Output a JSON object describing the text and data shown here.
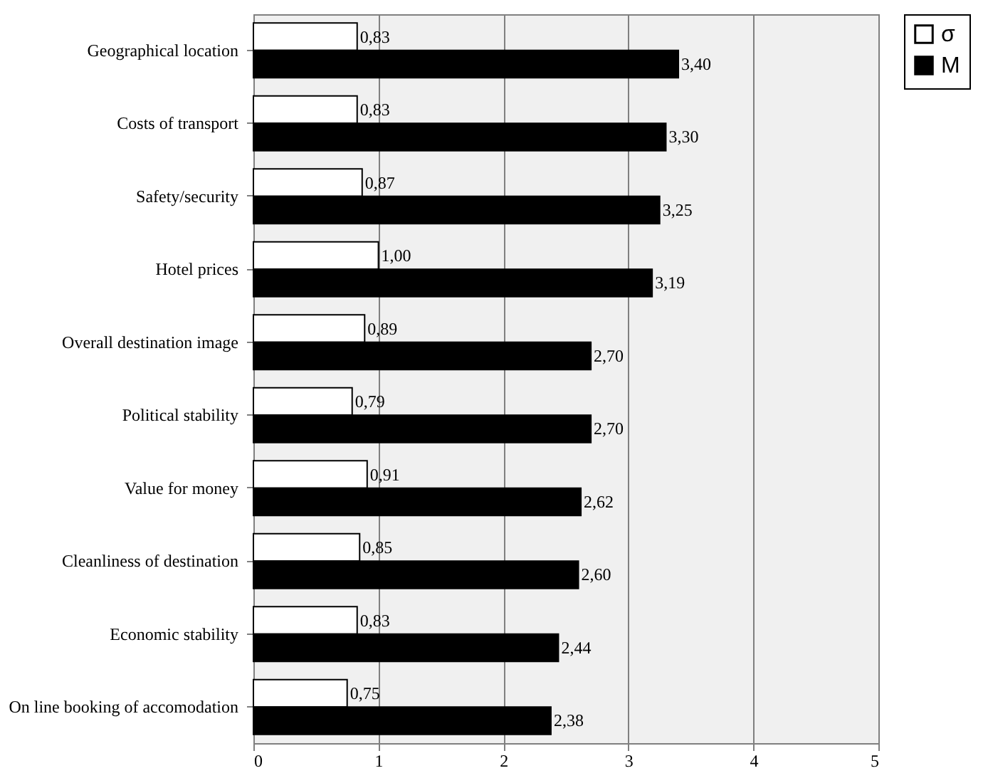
{
  "chart_data": {
    "type": "bar",
    "orientation": "horizontal",
    "categories": [
      "Geographical location",
      "Costs of transport",
      "Safety/security",
      "Hotel prices",
      "Overall destination image",
      "Political stability",
      "Value for money",
      "Cleanliness of destination",
      "Economic stability",
      "On line booking of accomodation"
    ],
    "series": [
      {
        "name": "σ",
        "color": "#ffffff",
        "values": [
          0.83,
          0.83,
          0.87,
          1.0,
          0.89,
          0.79,
          0.91,
          0.85,
          0.83,
          0.75
        ],
        "value_labels": [
          "0,83",
          "0,83",
          "0,87",
          "1,00",
          "0,89",
          "0,79",
          "0,91",
          "0,85",
          "0,83",
          "0,75"
        ]
      },
      {
        "name": "M",
        "color": "#000000",
        "values": [
          3.4,
          3.3,
          3.25,
          3.19,
          2.7,
          2.7,
          2.62,
          2.6,
          2.44,
          2.38
        ],
        "value_labels": [
          "3,40",
          "3,30",
          "3,25",
          "3,19",
          "2,70",
          "2,70",
          "2,62",
          "2,60",
          "2,44",
          "2,38"
        ]
      }
    ],
    "xlim": [
      0,
      5
    ],
    "xticks": [
      0,
      1,
      2,
      3,
      4,
      5
    ],
    "grid": "x",
    "legend": "right"
  }
}
